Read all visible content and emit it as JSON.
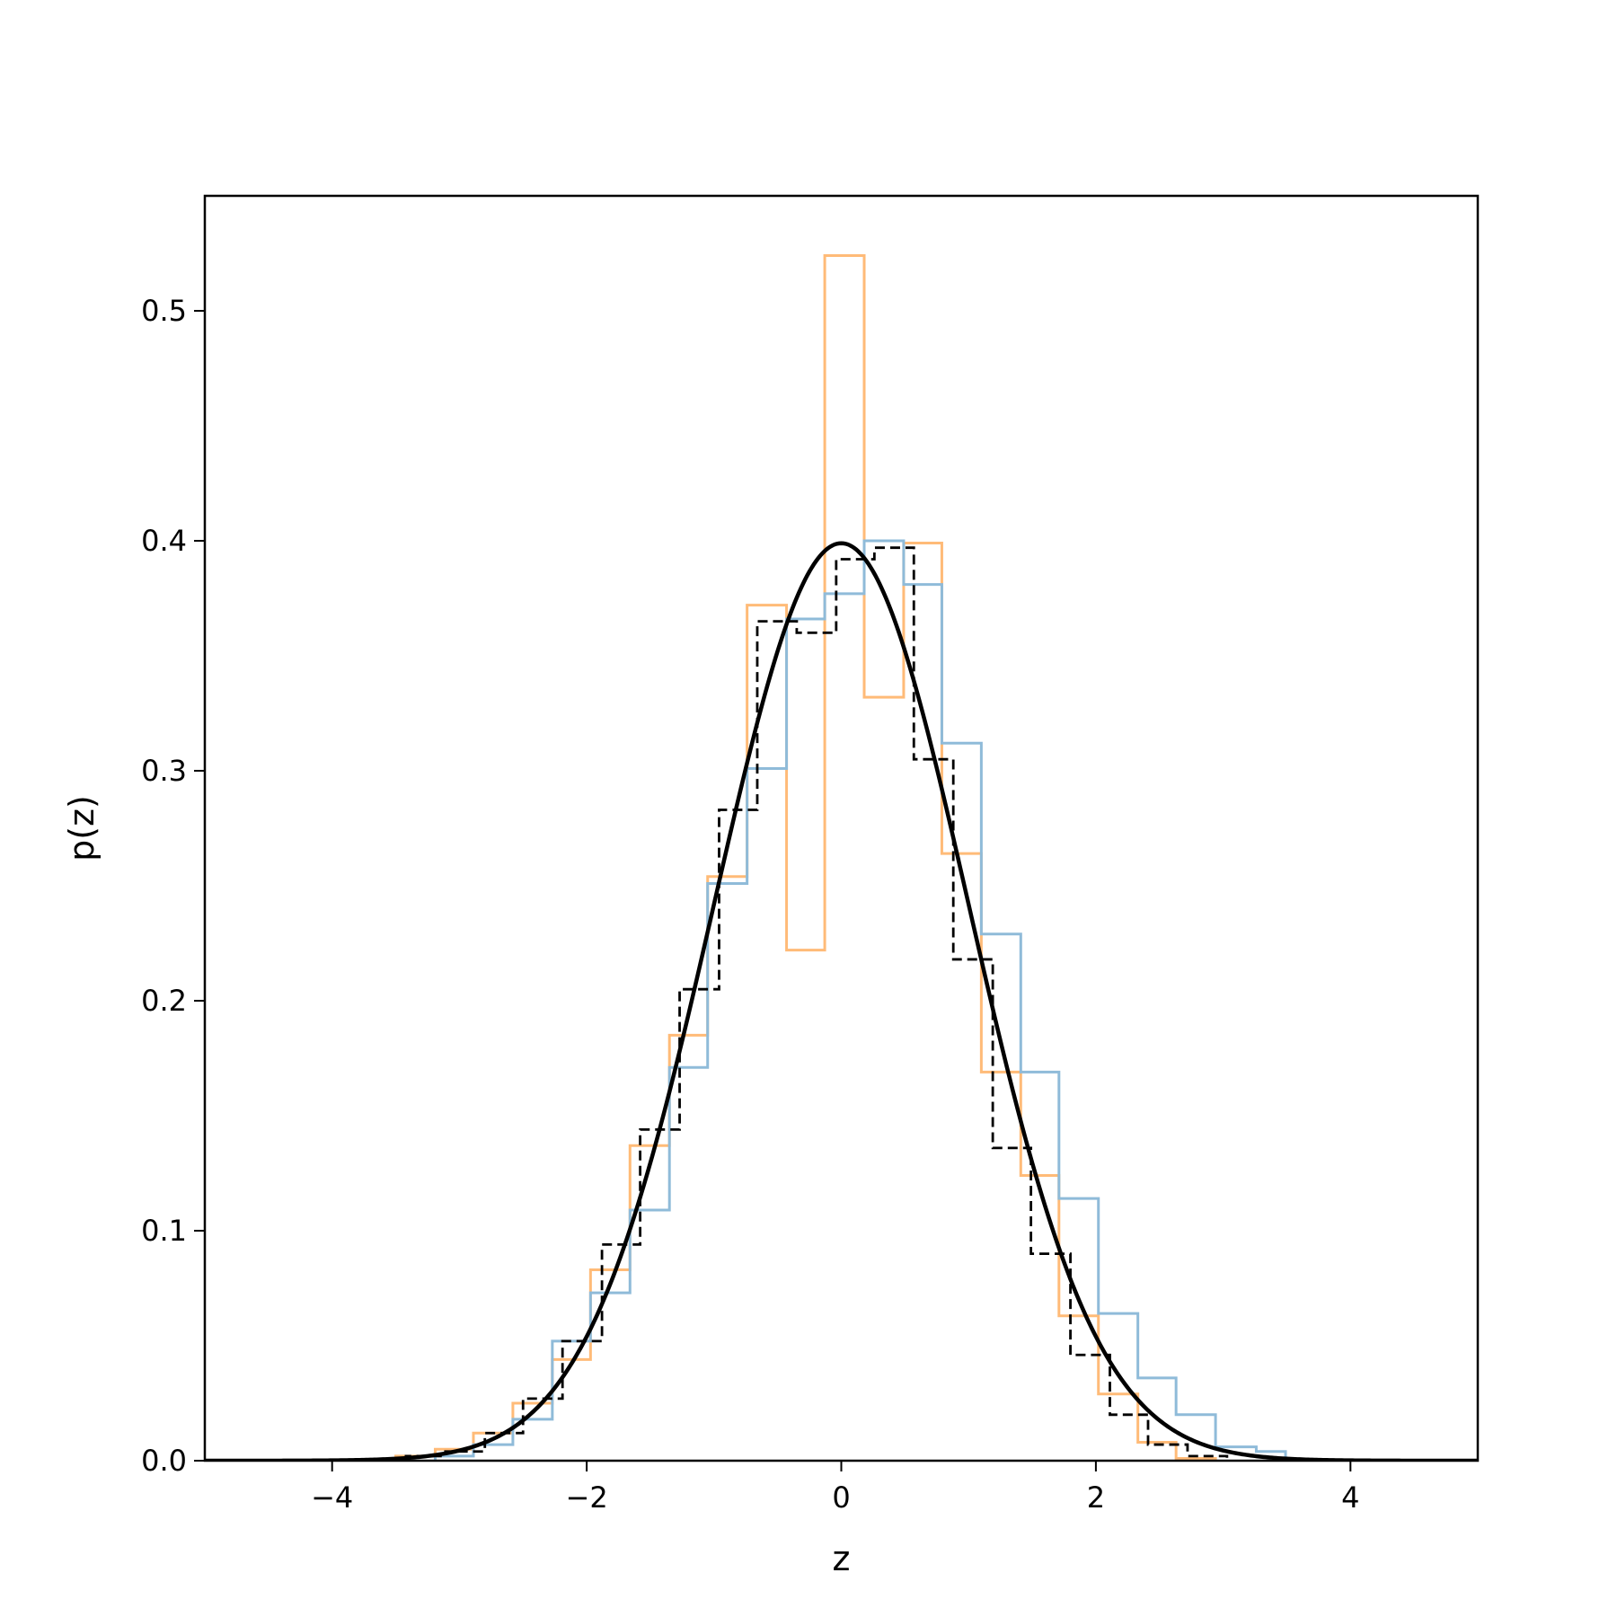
{
  "chart_data": {
    "type": "line",
    "title": "",
    "xlabel": "z",
    "ylabel": "p(z)",
    "xlim": [
      -5,
      5
    ],
    "ylim": [
      0,
      0.55
    ],
    "grid": false,
    "legend": "none",
    "xticks": [
      -4,
      -2,
      0,
      2,
      4
    ],
    "xtick_labels": [
      "−4",
      "−2",
      "0",
      "2",
      "4"
    ],
    "yticks": [
      0.0,
      0.1,
      0.2,
      0.3,
      0.4,
      0.5
    ],
    "ytick_labels": [
      "0.0",
      "0.1",
      "0.2",
      "0.3",
      "0.4",
      "0.5"
    ],
    "histograms": [
      {
        "type": "step-histogram",
        "color": "#ffbb78",
        "linestyle": "solid",
        "edges": [
          -3.5,
          -3.19,
          -2.89,
          -2.58,
          -2.27,
          -1.97,
          -1.66,
          -1.35,
          -1.05,
          -0.74,
          -0.43,
          -0.13,
          0.18,
          0.49,
          0.79,
          1.1,
          1.41,
          1.71,
          2.02,
          2.33,
          2.63,
          2.94
        ],
        "values": [
          0.002,
          0.005,
          0.012,
          0.025,
          0.044,
          0.083,
          0.137,
          0.185,
          0.254,
          0.372,
          0.222,
          0.524,
          0.332,
          0.399,
          0.264,
          0.169,
          0.124,
          0.063,
          0.029,
          0.008,
          0.001
        ]
      },
      {
        "type": "step-histogram",
        "color": "#8fbbd9",
        "linestyle": "solid",
        "edges": [
          -3.19,
          -2.89,
          -2.58,
          -2.27,
          -1.97,
          -1.66,
          -1.35,
          -1.05,
          -0.74,
          -0.43,
          -0.13,
          0.18,
          0.49,
          0.79,
          1.1,
          1.41,
          1.71,
          2.02,
          2.33,
          2.63,
          2.94,
          3.26,
          3.49
        ],
        "values": [
          0.002,
          0.007,
          0.018,
          0.052,
          0.073,
          0.109,
          0.171,
          0.251,
          0.301,
          0.366,
          0.377,
          0.4,
          0.381,
          0.312,
          0.229,
          0.169,
          0.114,
          0.064,
          0.036,
          0.02,
          0.006,
          0.004
        ]
      },
      {
        "type": "step-histogram",
        "color": "#000000",
        "linestyle": "dashed",
        "edges": [
          -3.42,
          -3.11,
          -2.8,
          -2.5,
          -2.19,
          -1.88,
          -1.58,
          -1.27,
          -0.96,
          -0.66,
          -0.35,
          -0.04,
          0.26,
          0.57,
          0.88,
          1.19,
          1.49,
          1.8,
          2.11,
          2.41,
          2.72,
          3.03
        ],
        "values": [
          0.002,
          0.004,
          0.012,
          0.027,
          0.052,
          0.094,
          0.144,
          0.205,
          0.283,
          0.365,
          0.36,
          0.392,
          0.397,
          0.305,
          0.218,
          0.136,
          0.09,
          0.046,
          0.02,
          0.007,
          0.002
        ]
      }
    ],
    "curve": {
      "type": "line",
      "color": "#000000",
      "function": "standard normal pdf",
      "x_range": [
        -5,
        5
      ],
      "peak": 0.399
    }
  }
}
